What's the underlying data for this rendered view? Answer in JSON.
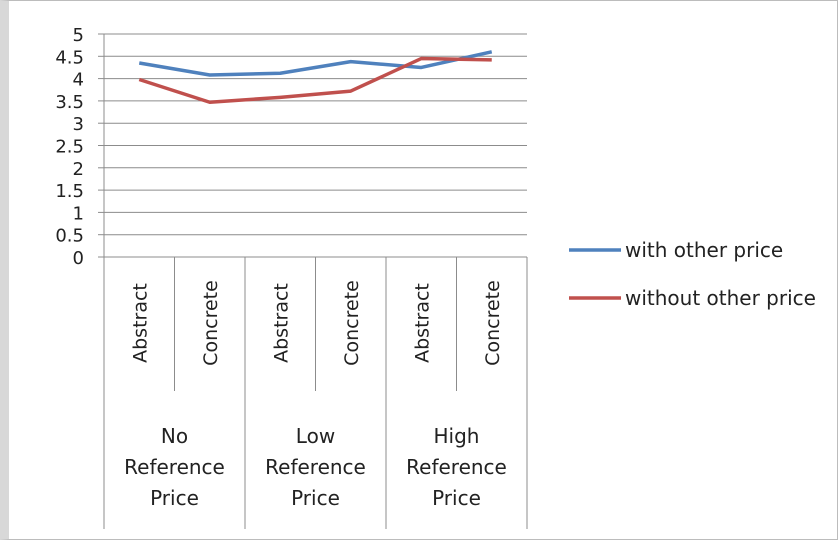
{
  "chart_data": {
    "type": "line",
    "groups": [
      "No\nReference\nPrice",
      "Low\nReference\nPrice",
      "High\nReference\nPrice"
    ],
    "categories": [
      "Abstract",
      "Concrete",
      "Abstract",
      "Concrete",
      "Abstract",
      "Concrete"
    ],
    "series": [
      {
        "name": "with other price",
        "values": [
          4.35,
          4.08,
          4.12,
          4.38,
          4.25,
          4.6
        ],
        "color": "#4f81bd"
      },
      {
        "name": "without other price",
        "values": [
          3.98,
          3.47,
          3.58,
          3.72,
          4.45,
          4.42
        ],
        "color": "#c0504d"
      }
    ],
    "y_ticks": [
      "0",
      "0.5",
      "1",
      "1.5",
      "2",
      "2.5",
      "3",
      "3.5",
      "4",
      "4.5",
      "5"
    ],
    "ylim": [
      0,
      5
    ],
    "grid": true,
    "legend_position": "right"
  }
}
